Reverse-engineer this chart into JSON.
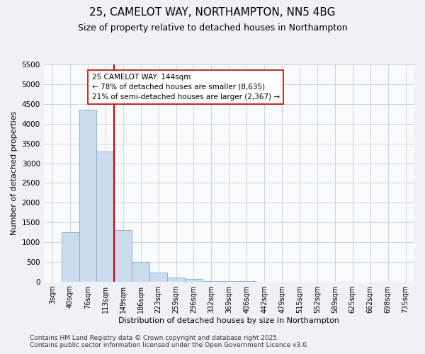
{
  "title_line1": "25, CAMELOT WAY, NORTHAMPTON, NN5 4BG",
  "title_line2": "Size of property relative to detached houses in Northampton",
  "xlabel": "Distribution of detached houses by size in Northampton",
  "ylabel": "Number of detached properties",
  "categories": [
    "3sqm",
    "40sqm",
    "76sqm",
    "113sqm",
    "149sqm",
    "186sqm",
    "223sqm",
    "259sqm",
    "296sqm",
    "332sqm",
    "369sqm",
    "406sqm",
    "442sqm",
    "479sqm",
    "515sqm",
    "552sqm",
    "589sqm",
    "625sqm",
    "662sqm",
    "698sqm",
    "735sqm"
  ],
  "values": [
    0,
    1250,
    4350,
    3300,
    1300,
    500,
    230,
    100,
    60,
    15,
    5,
    2,
    0,
    0,
    0,
    0,
    0,
    0,
    0,
    0,
    0
  ],
  "bar_color": "#ccdcec",
  "bar_edge_color": "#7aadd0",
  "vline_color": "#cc0000",
  "vline_x": 3.5,
  "annotation_text": "25 CAMELOT WAY: 144sqm\n← 78% of detached houses are smaller (8,635)\n21% of semi-detached houses are larger (2,367) →",
  "annotation_box_facecolor": "#ffffff",
  "annotation_box_edgecolor": "#cc0000",
  "ylim": [
    0,
    5500
  ],
  "yticks": [
    0,
    500,
    1000,
    1500,
    2000,
    2500,
    3000,
    3500,
    4000,
    4500,
    5000,
    5500
  ],
  "background_color": "#eef2f7",
  "plot_background": "#f8fafc",
  "grid_color": "#c8d4e0",
  "title1_fontsize": 11,
  "title2_fontsize": 9,
  "tick_fontsize": 7,
  "axis_label_fontsize": 8,
  "footer_line1": "Contains HM Land Registry data © Crown copyright and database right 2025.",
  "footer_line2": "Contains public sector information licensed under the Open Government Licence v3.0.",
  "footer_fontsize": 6.5
}
